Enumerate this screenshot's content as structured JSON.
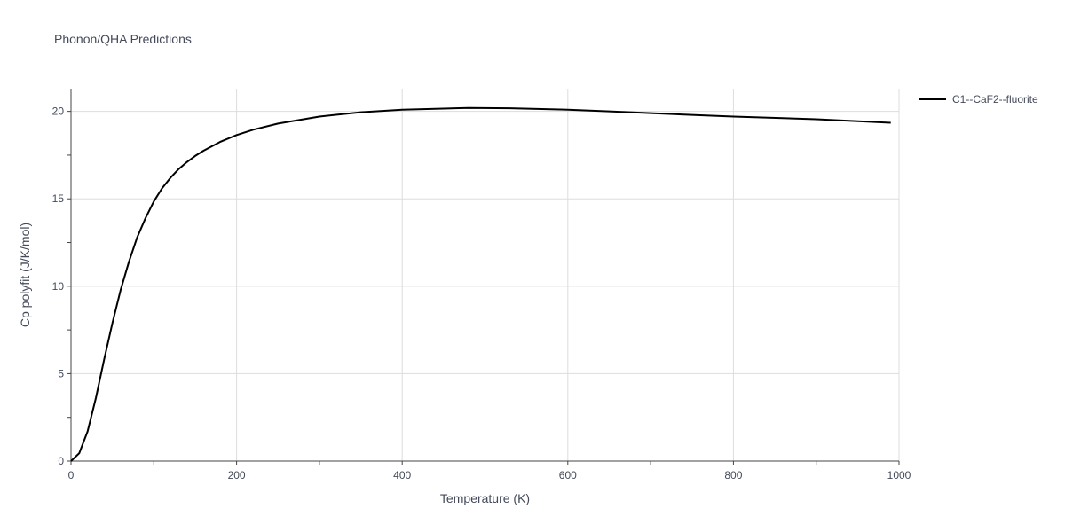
{
  "chart_data": {
    "type": "line",
    "title": "Phonon/QHA Predictions",
    "xlabel": "Temperature (K)",
    "ylabel": "Cp polyfit (J/K/mol)",
    "xlim": [
      0,
      1000
    ],
    "ylim": [
      0,
      21.3
    ],
    "xticks": [
      0,
      200,
      400,
      600,
      800,
      1000
    ],
    "xtick_labels": [
      "0",
      "200",
      "400",
      "600",
      "800",
      "1000"
    ],
    "yticks": [
      0,
      5,
      10,
      15,
      20
    ],
    "ytick_labels": [
      "0",
      "5",
      "10",
      "15",
      "20"
    ],
    "grid": true,
    "legend_position": "top-right",
    "series": [
      {
        "name": "C1--CaF2--fluorite",
        "color": "#000000",
        "x": [
          0,
          10,
          20,
          30,
          40,
          50,
          60,
          70,
          80,
          90,
          100,
          110,
          120,
          130,
          140,
          150,
          160,
          180,
          200,
          220,
          250,
          300,
          350,
          400,
          480,
          530,
          600,
          650,
          700,
          750,
          800,
          900,
          990
        ],
        "y": [
          0.0,
          0.45,
          1.7,
          3.6,
          5.8,
          7.9,
          9.8,
          11.4,
          12.8,
          13.9,
          14.85,
          15.6,
          16.2,
          16.7,
          17.1,
          17.45,
          17.75,
          18.25,
          18.65,
          18.95,
          19.3,
          19.7,
          19.95,
          20.1,
          20.2,
          20.18,
          20.1,
          20.0,
          19.9,
          19.8,
          19.7,
          19.55,
          19.35
        ]
      }
    ]
  }
}
